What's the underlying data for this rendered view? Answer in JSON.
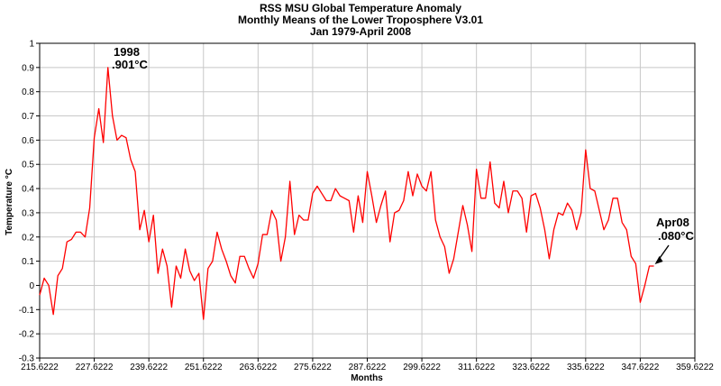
{
  "chart_data": {
    "type": "line",
    "title_lines": [
      "RSS MSU Global Temperature Anomaly",
      "Monthly Means of the Lower Troposphere V3.01",
      "Jan 1979-April 2008"
    ],
    "xlabel": "Months",
    "ylabel": "Temperature °C",
    "xlim": [
      215.6222,
      359.6222
    ],
    "ylim": [
      -0.3,
      1
    ],
    "x_ticks": [
      215.6222,
      227.6222,
      239.6222,
      251.6222,
      263.6222,
      275.6222,
      287.6222,
      299.6222,
      311.6222,
      323.6222,
      335.6222,
      347.6222,
      359.6222
    ],
    "x_tick_labels": [
      "215.6222",
      "227.6222",
      "239.6222",
      "251.6222",
      "263.6222",
      "275.6222",
      "287.6222",
      "299.6222",
      "311.6222",
      "323.6222",
      "335.6222",
      "347.6222",
      "359.6222"
    ],
    "y_ticks": [
      -0.3,
      -0.2,
      -0.1,
      0,
      0.1,
      0.2,
      0.3,
      0.4,
      0.5,
      0.6,
      0.7,
      0.8,
      0.9,
      1
    ],
    "y_tick_labels": [
      "-0.3",
      "-0.2",
      "-0.1",
      "0",
      "0.1",
      "0.2",
      "0.3",
      "0.4",
      "0.5",
      "0.6",
      "0.7",
      "0.8",
      "0.9",
      "1"
    ],
    "grid": true,
    "series": [
      {
        "color": "#ff0000",
        "x_start": 215.6222,
        "x_step": 1,
        "values": [
          -0.04,
          0.03,
          0,
          -0.12,
          0.04,
          0.07,
          0.18,
          0.19,
          0.22,
          0.22,
          0.2,
          0.32,
          0.61,
          0.73,
          0.59,
          0.9,
          0.7,
          0.6,
          0.62,
          0.61,
          0.52,
          0.47,
          0.23,
          0.31,
          0.18,
          0.29,
          0.05,
          0.15,
          0.08,
          -0.09,
          0.08,
          0.03,
          0.15,
          0.06,
          0.02,
          0.05,
          -0.14,
          0.07,
          0.1,
          0.22,
          0.15,
          0.1,
          0.04,
          0.01,
          0.12,
          0.12,
          0.07,
          0.03,
          0.09,
          0.21,
          0.21,
          0.31,
          0.27,
          0.1,
          0.2,
          0.43,
          0.21,
          0.29,
          0.27,
          0.27,
          0.38,
          0.41,
          0.38,
          0.35,
          0.35,
          0.4,
          0.37,
          0.36,
          0.35,
          0.22,
          0.37,
          0.26,
          0.47,
          0.37,
          0.26,
          0.33,
          0.39,
          0.18,
          0.3,
          0.31,
          0.35,
          0.47,
          0.37,
          0.46,
          0.41,
          0.39,
          0.47,
          0.27,
          0.2,
          0.16,
          0.05,
          0.11,
          0.22,
          0.33,
          0.25,
          0.14,
          0.48,
          0.36,
          0.36,
          0.51,
          0.34,
          0.32,
          0.43,
          0.3,
          0.39,
          0.39,
          0.36,
          0.22,
          0.37,
          0.38,
          0.32,
          0.23,
          0.11,
          0.23,
          0.3,
          0.29,
          0.34,
          0.31,
          0.23,
          0.3,
          0.56,
          0.4,
          0.39,
          0.31,
          0.23,
          0.27,
          0.36,
          0.36,
          0.26,
          0.23,
          0.12,
          0.09,
          -0.07,
          0,
          0.08,
          0.08
        ]
      }
    ],
    "annotations": [
      {
        "lines": [
          "1998",
          ".901°C"
        ],
        "x": 230.6222,
        "y": 0.901
      },
      {
        "lines": [
          "Apr08",
          ".080°C"
        ],
        "x": 350.6222,
        "y": 0.08
      }
    ]
  }
}
